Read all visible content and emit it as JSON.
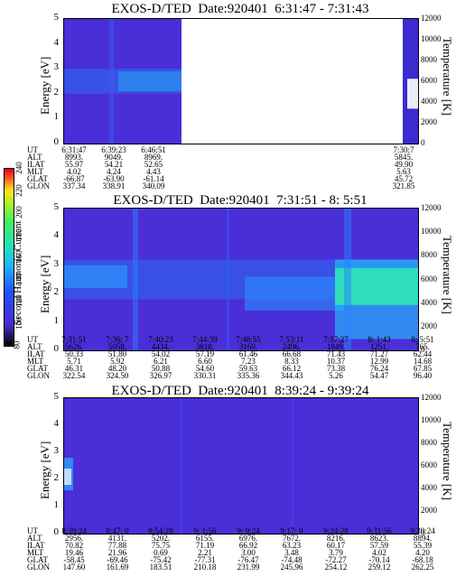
{
  "colors": {
    "background_spectrum": "#4a2fd8",
    "band": "#2a8cf0",
    "band_hot": "#30e8b0"
  },
  "colorbar": {
    "label": "Second Harmonic Current",
    "ticks": [
      "80",
      "100",
      "120",
      "140",
      "160",
      "180",
      "200",
      "220",
      "240"
    ]
  },
  "chart_data": [
    {
      "type": "heatmap",
      "title": "EXOS-D/TED  Date:920401  6:31:47 - 7:31:43",
      "ylabel": "Energy [eV]",
      "y2label": "Temperature [K]",
      "ylim": [
        0,
        5
      ],
      "y2lim": [
        0,
        12000
      ],
      "yticks": [
        "0",
        "1",
        "2",
        "3",
        "4",
        "5"
      ],
      "y2ticks": [
        "0",
        "2000",
        "4000",
        "6000",
        "8000",
        "10000",
        "12000"
      ],
      "table": {
        "rows": [
          "UT",
          "ALT",
          "ILAT",
          "MLT",
          "GLAT",
          "GLON"
        ],
        "columns": [
          [
            "6:31:47",
            "8993.",
            "55.97",
            "4.02",
            "-66.87",
            "337.34"
          ],
          [
            "6:39:23",
            "9049.",
            "54.21",
            "4.24",
            "-63.90",
            "338.91"
          ],
          [
            "6:46:51",
            "8969.",
            "52.65",
            "4.43",
            "-61.14",
            "340.09"
          ],
          [
            "7:30:7",
            "5845.",
            "49.90",
            "5.63",
            "45.72",
            "321.85"
          ]
        ]
      }
    },
    {
      "type": "heatmap",
      "title": "EXOS-D/TED  Date:920401  7:31:51 - 8: 5:51",
      "ylabel": "Energy [eV]",
      "y2label": "Temperature [K]",
      "ylim": [
        0,
        5
      ],
      "y2lim": [
        0,
        12000
      ],
      "yticks": [
        "0",
        "1",
        "2",
        "3",
        "4",
        "5"
      ],
      "y2ticks": [
        "0",
        "2000",
        "4000",
        "6000",
        "8000",
        "10000",
        "12000"
      ],
      "table": {
        "rows": [
          "UT",
          "ALT",
          "ILAT",
          "MLT",
          "GLAT",
          "GLON"
        ],
        "columns": [
          [
            "7:31:51",
            "5626.",
            "50.33",
            "5.71",
            "46.31",
            "322.54"
          ],
          [
            "7:36: 7",
            "5058.",
            "51.80",
            "5.92",
            "48.20",
            "324.50"
          ],
          [
            "7:40:23",
            "4434.",
            "54.02",
            "6.21",
            "50.88",
            "326.97"
          ],
          [
            "7:44:39",
            "3818.",
            "57.19",
            "6.60",
            "54.60",
            "330.31"
          ],
          [
            "7:48:55",
            "3160.",
            "61.46",
            "7.23",
            "59.63",
            "335.36"
          ],
          [
            "7:53:11",
            "2496.",
            "66.68",
            "8.33",
            "66.12",
            "344.43"
          ],
          [
            "7:57:27",
            "1849.",
            "71.43",
            "10.37",
            "73.38",
            "5.26"
          ],
          [
            "8: 1:43",
            "1251.",
            "71.27",
            "12.99",
            "76.24",
            "54.47"
          ],
          [
            "8: 5:51",
            "765.",
            "62.44",
            "14.68",
            "67.85",
            "96.40"
          ]
        ]
      }
    },
    {
      "type": "heatmap",
      "title": "EXOS-D/TED  Date:920401  8:39:24 - 9:39:24",
      "ylabel": "Energy [eV]",
      "y2label": "Temperature [K]",
      "ylim": [
        0,
        5
      ],
      "y2lim": [
        0,
        12000
      ],
      "yticks": [
        "0",
        "1",
        "2",
        "3",
        "4",
        "5"
      ],
      "y2ticks": [
        "0",
        "2000",
        "4000",
        "6000",
        "8000",
        "10000",
        "12000"
      ],
      "table": {
        "rows": [
          "UT",
          "ALT",
          "ILAT",
          "MLT",
          "GLAT",
          "GLON"
        ],
        "columns": [
          [
            "8:39:24",
            "2956.",
            "70.82",
            "19.46",
            "-58.45",
            "147.60"
          ],
          [
            "8:47: 0",
            "4131.",
            "77.88",
            "21.96",
            "-69.46",
            "161.69"
          ],
          [
            "8:54:28",
            "5202.",
            "75.75",
            "0.69",
            "-75.42",
            "183.51"
          ],
          [
            "9: 1:56",
            "6155.",
            "71.19",
            "2.21",
            "-77.31",
            "210.18"
          ],
          [
            "9: 9:24",
            "6976.",
            "66.92",
            "3.00",
            "-76.47",
            "231.99"
          ],
          [
            "9:17: 0",
            "7672.",
            "63.23",
            "3.48",
            "-74.48",
            "245.96"
          ],
          [
            "9:24:28",
            "8216.",
            "60.17",
            "3.79",
            "-72.27",
            "254.12"
          ],
          [
            "9:31:56",
            "8623.",
            "57.59",
            "4.02",
            "-70.14",
            "259.12"
          ],
          [
            "9:39:24",
            "8894.",
            "55.39",
            "4.20",
            "-68.18",
            "262.25"
          ]
        ]
      }
    }
  ]
}
